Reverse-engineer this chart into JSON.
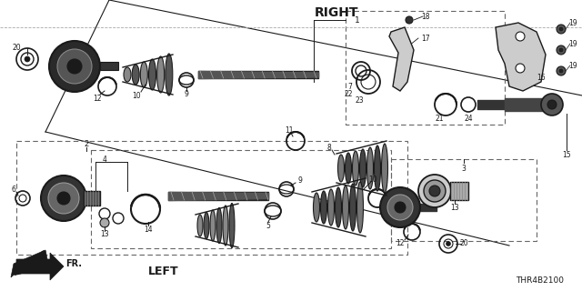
{
  "bg_color": "#ffffff",
  "line_color": "#1a1a1a",
  "diagram_code": "THR4B2100",
  "right_label": "RIGHT",
  "left_label": "LEFT",
  "fr_label": "FR."
}
